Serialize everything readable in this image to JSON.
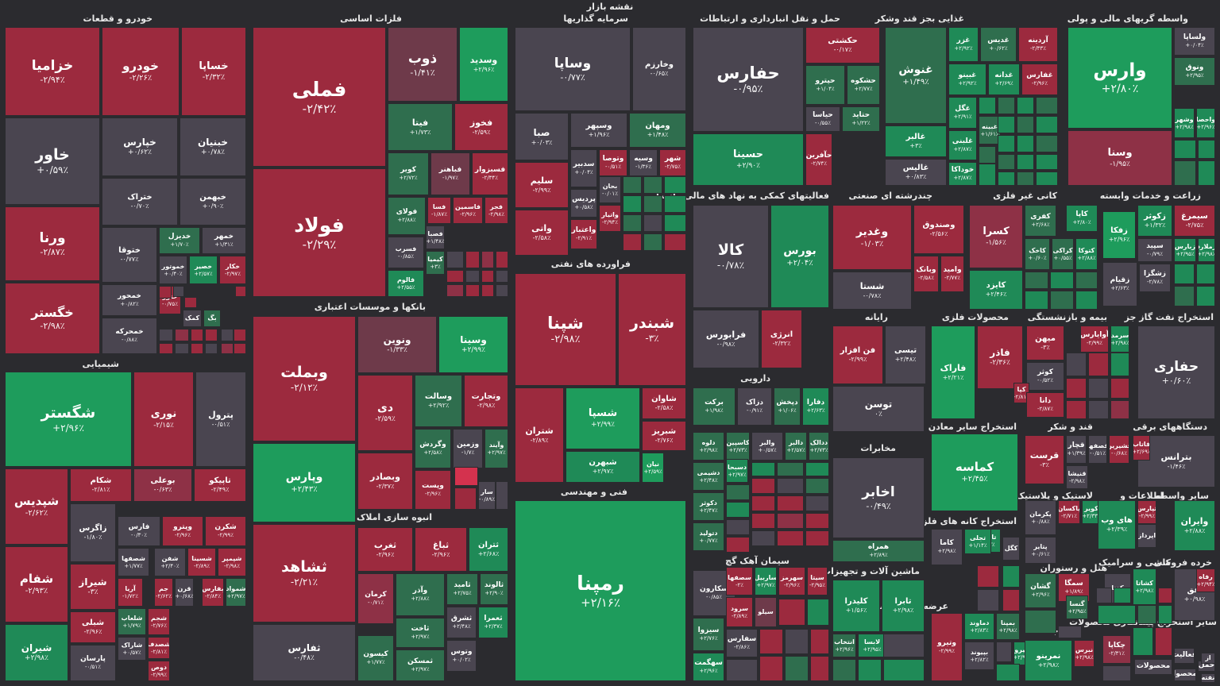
{
  "page": {
    "title": "نقشه بازار"
  },
  "colors": {
    "neg3": "#9c2a3e",
    "neg2": "#8e3146",
    "neg1": "#6e3a4a",
    "zero": "#4a4550",
    "pos1": "#2f6e4e",
    "pos2": "#1f8a57",
    "pos3": "#1e9c5c",
    "bg": "#2b2b2f"
  },
  "sections": [
    "خودرو و قطعات",
    "فلزات اساسی",
    "سرمایه گذاریها",
    "حمل و نقل انبارداری و ارتباطات",
    "غذایی بجز قند وشکر",
    "واسطه گریهای مالی و پولی",
    "شیمیایی",
    "بانکها و موسسات اعتباری",
    "فراورده های نفتی",
    "فعالیتهای کمکی به نهاد های مالی واسط",
    "چندرشته ای صنعتی",
    "کانی غیر فلزی",
    "زراعت و خدمات وابسته",
    "رایانه",
    "محصولات فلزی",
    "بیمه و بازنشستگی",
    "استخراج نفت گاز جز",
    "دارویی",
    "انبوه سازی املاک و مستغلات",
    "فنی و مهندسی",
    "مخابرات",
    "استخراج سایر معادن",
    "قند و شکر",
    "دستگاههای برقی",
    "لاستیک و پلاستیک",
    "اطلاعات و",
    "سایر واسطه",
    "استخراج کانه های فلزی",
    "سیمان آهک گچ",
    "ماشین آلات و تجهیزات",
    "هتل و رستوران",
    "کاشی و سرامیک",
    "خرده فروشی",
    "عرضه برق،گاز،بخار و آب",
    "منسوجات",
    "سایر استخراج پیمانکاری محصولات"
  ],
  "tiles": [
    {
      "n": "خزامیا",
      "p": "-۲/۹۴٪"
    },
    {
      "n": "خودرو",
      "p": "-۲/۲۶٪"
    },
    {
      "n": "خساپا",
      "p": "-۲/۳۲٪"
    },
    {
      "n": "خاور",
      "p": "+۰/۵۹٪"
    },
    {
      "n": "خپارس",
      "p": "+۰/۶۲٪"
    },
    {
      "n": "خبنیان",
      "p": "+۰/۷۸٪"
    },
    {
      "n": "ختراک",
      "p": "-۰/۷۰٪"
    },
    {
      "n": "خبهمن",
      "p": "+۰/۹۰٪"
    },
    {
      "n": "ورنا",
      "p": "-۲/۸۷٪"
    },
    {
      "n": "ختوقا",
      "p": "-۰/۷۷٪"
    },
    {
      "n": "خدیزل",
      "p": "+۱/۷۰٪"
    },
    {
      "n": "خمهر",
      "p": "+۱/۳۱٪"
    },
    {
      "n": "خمحور",
      "p": "+۰/۸۲٪"
    },
    {
      "n": "خموتور",
      "p": "+۰/۴۰٪"
    },
    {
      "n": "خصیر",
      "p": "+۲/۵۷٪"
    },
    {
      "n": "خکار",
      "p": "-۲/۹۷٪"
    },
    {
      "n": "خگستر",
      "p": "-۲/۹۸٪"
    },
    {
      "n": "خمحرکه",
      "p": "-۰/۸۸٪"
    },
    {
      "n": "ختور",
      "p": "-۰/۷۵٪"
    },
    {
      "n": "کمک",
      "p": ""
    },
    {
      "n": "بگ",
      "p": ""
    },
    {
      "n": "فملی",
      "p": "-۲/۴۲٪"
    },
    {
      "n": "ذوب",
      "p": "-۱/۴۱٪"
    },
    {
      "n": "وسدید",
      "p": "+۲/۹۶٪"
    },
    {
      "n": "فیتا",
      "p": "+۱/۷۳٪"
    },
    {
      "n": "فخوز",
      "p": "-۲/۵۹٪"
    },
    {
      "n": "فولاد",
      "p": "-۲/۲۹٪"
    },
    {
      "n": "کویر",
      "p": "+۲/۷۲٪"
    },
    {
      "n": "فباهنر",
      "p": "-۱/۹۷٪"
    },
    {
      "n": "فسبزوار",
      "p": "-۲/۳۴٪"
    },
    {
      "n": "فولای",
      "p": "+۲/۸۸٪"
    },
    {
      "n": "فسا",
      "p": "-۱/۸۷٪"
    },
    {
      "n": "فاسمین",
      "p": "-۲/۹۶٪"
    },
    {
      "n": "فجر",
      "p": "-۲/۹۸٪"
    },
    {
      "n": "فصبا",
      "p": "+۱/۴۸٪"
    },
    {
      "n": "فسرب",
      "p": "-۰/۸۵٪"
    },
    {
      "n": "کیمیا",
      "p": "+۳٪"
    },
    {
      "n": "فالوم",
      "p": "+۲/۵۵٪"
    },
    {
      "n": "وساپا",
      "p": "-۰/۷۷٪"
    },
    {
      "n": "وخارزم",
      "p": "-۰/۶۵٪"
    },
    {
      "n": "صبا",
      "p": "+۰/۰۳٪"
    },
    {
      "n": "وسپهر",
      "p": "+۱/۹۶٪"
    },
    {
      "n": "ومهان",
      "p": "+۱/۴۸٪"
    },
    {
      "n": "سلیم",
      "p": "-۲/۹۹٪"
    },
    {
      "n": "سدبیر",
      "p": "+۰/۰۴٪"
    },
    {
      "n": "وتوصا",
      "p": "-۰/۵۱٪"
    },
    {
      "n": "وسیه",
      "p": "-۱/۳۶٪"
    },
    {
      "n": "شهر",
      "p": "-۲/۷۵٪"
    },
    {
      "n": "پردیس",
      "p": "+۰/۵۸٪"
    },
    {
      "n": "بحان",
      "p": "-۰/۰۱٪"
    },
    {
      "n": "واتی",
      "p": "-۲/۵۸٪"
    },
    {
      "n": "واتیار",
      "p": "-۲/۹۴٪"
    },
    {
      "n": "واعتبار",
      "p": "-۲/۹۱٪"
    },
    {
      "n": "حفارس",
      "p": "-۰/۹۵٪"
    },
    {
      "n": "حکشتی",
      "p": "-۰/۱۷٪"
    },
    {
      "n": "حپترو",
      "p": "+۱/۰۴٪"
    },
    {
      "n": "حشکوه",
      "p": "+۲/۷۷٪"
    },
    {
      "n": "حیاسا",
      "p": "-۰/۵۵٪"
    },
    {
      "n": "حتاید",
      "p": "+۱/۲۲٪"
    },
    {
      "n": "حسینا",
      "p": "+۲/۹۰٪"
    },
    {
      "n": "حآفرین",
      "p": "-۲/۷۴٪"
    },
    {
      "n": "غنوش",
      "p": "+۱/۴۹٪"
    },
    {
      "n": "غزر",
      "p": "+۲/۹۲٪"
    },
    {
      "n": "غدیس",
      "p": "+۰/۶۲٪"
    },
    {
      "n": "آردینه",
      "p": "-۲/۳۳٪"
    },
    {
      "n": "غبینو",
      "p": "+۲/۹۲٪"
    },
    {
      "n": "غدانه",
      "p": "+۲/۶۹٪"
    },
    {
      "n": "غفارس",
      "p": "-۲/۹۶٪"
    },
    {
      "n": "غگل",
      "p": "+۲/۹۱٪"
    },
    {
      "n": "غالبر",
      "p": "+۳٪"
    },
    {
      "n": "غلبنی",
      "p": "+۲/۸۷٪"
    },
    {
      "n": "غبینه",
      "p": "+۱/۶۱٪"
    },
    {
      "n": "غالیس",
      "p": "+۰/۸۳٪"
    },
    {
      "n": "خوداکا",
      "p": "+۲/۸۷٪"
    },
    {
      "n": "وارس",
      "p": "+۲/۸۰٪"
    },
    {
      "n": "ولساپا",
      "p": "+۰/۰۴٪"
    },
    {
      "n": "ونوق",
      "p": "+۲/۹۵٪"
    },
    {
      "n": "وسنا",
      "p": "-۱/۹۵٪"
    },
    {
      "n": "وشهر",
      "p": "+۲/۹۸٪"
    },
    {
      "n": "واحصا",
      "p": "+۲/۹۶٪"
    },
    {
      "n": "شگستر",
      "p": "+۲/۹۶٪"
    },
    {
      "n": "نوری",
      "p": "-۲/۱۵٪"
    },
    {
      "n": "پترول",
      "p": "-۰/۵۱٪"
    },
    {
      "n": "شپدیس",
      "p": "-۲/۶۲٪"
    },
    {
      "n": "شکام",
      "p": "-۲/۸۱٪"
    },
    {
      "n": "بوعلی",
      "p": "-۰/۶۳٪"
    },
    {
      "n": "تاپیکو",
      "p": "-۲/۴۹٪"
    },
    {
      "n": "زاگرس",
      "p": "-۱/۸۰٪"
    },
    {
      "n": "فارس",
      "p": "-۰/۳۰٪"
    },
    {
      "n": "وپترو",
      "p": "-۲/۹۶٪"
    },
    {
      "n": "شکرن",
      "p": "-۲/۹۹٪"
    },
    {
      "n": "شصفها",
      "p": "+۱/۷۷٪"
    },
    {
      "n": "شفن",
      "p": "+۲/۴۰٪"
    },
    {
      "n": "شسینا",
      "p": "-۲/۸۹٪"
    },
    {
      "n": "شپمپر",
      "p": "-۲/۹۸٪"
    },
    {
      "n": "شفام",
      "p": "-۲/۹۳٪"
    },
    {
      "n": "شیراز",
      "p": "-۳٪"
    },
    {
      "n": "آریا",
      "p": "-۱/۷۲٪"
    },
    {
      "n": "جم",
      "p": "-۲/۶۲٪"
    },
    {
      "n": "قرن",
      "p": "+۰/۶۸٪"
    },
    {
      "n": "بفارس",
      "p": "-۲/۸۴٪"
    },
    {
      "n": "شمواد",
      "p": "+۲/۹۷٪"
    },
    {
      "n": "شبلی",
      "p": "-۲/۹۶٪"
    },
    {
      "n": "شلعاب",
      "p": "+۱/۷۹٪"
    },
    {
      "n": "شجم",
      "p": "-۲/۷۶٪"
    },
    {
      "n": "شیران",
      "p": "+۲/۹۸٪"
    },
    {
      "n": "شاراک",
      "p": "+۰/۵۷٪"
    },
    {
      "n": "شصدف",
      "p": "-۲/۸۱٪"
    },
    {
      "n": "پارسان",
      "p": "-۰/۵۱٪"
    },
    {
      "n": "دوص",
      "p": "-۲/۹۹٪"
    },
    {
      "n": "وبملت",
      "p": "-۲/۱۲٪"
    },
    {
      "n": "ونوین",
      "p": "-۱/۳۳٪"
    },
    {
      "n": "وسینا",
      "p": "+۲/۹۹٪"
    },
    {
      "n": "دی",
      "p": "-۲/۵۹٪"
    },
    {
      "n": "وسالت",
      "p": "+۲/۹۲٪"
    },
    {
      "n": "وتجارت",
      "p": "-۲/۹۸٪"
    },
    {
      "n": "وپارس",
      "p": "+۲/۴۳٪"
    },
    {
      "n": "وگردش",
      "p": "+۲/۵۸٪"
    },
    {
      "n": "وزمین",
      "p": "-۱/۷٪"
    },
    {
      "n": "وآیند",
      "p": "+۲/۹۷٪"
    },
    {
      "n": "وبصادر",
      "p": "-۲/۳۷٪"
    },
    {
      "n": "وپست",
      "p": "-۲/۹۶٪"
    },
    {
      "n": "سار",
      "p": "-۰/۸۹٪"
    },
    {
      "n": "شپنا",
      "p": "-۲/۹۸٪"
    },
    {
      "n": "شبندر",
      "p": "-۳٪"
    },
    {
      "n": "شتران",
      "p": "-۲/۸۹٪"
    },
    {
      "n": "شسپا",
      "p": "+۲/۹۹٪"
    },
    {
      "n": "شاوان",
      "p": "-۲/۵۸٪"
    },
    {
      "n": "شبریز",
      "p": "-۲/۷۶٪"
    },
    {
      "n": "شبهرن",
      "p": "+۲/۹۷٪"
    },
    {
      "n": "نیان",
      "p": "+۲/۵۹٪"
    },
    {
      "n": "کالا",
      "p": "-۰/۷۸٪"
    },
    {
      "n": "بورس",
      "p": "+۲/۰۴٪"
    },
    {
      "n": "فرابورس",
      "p": "-۰/۹۸٪"
    },
    {
      "n": "انرژی",
      "p": "-۲/۳۲٪"
    },
    {
      "n": "وغدیر",
      "p": "-۱/۰۳٪"
    },
    {
      "n": "وصندوق",
      "p": "-۲/۵۶٪"
    },
    {
      "n": "وبانک",
      "p": "-۲/۵۸٪"
    },
    {
      "n": "وامید",
      "p": "-۲/۷۷٪"
    },
    {
      "n": "شستا",
      "p": "-۰/۷۸٪"
    },
    {
      "n": "کسرا",
      "p": "-۱/۵۶٪"
    },
    {
      "n": "کفری",
      "p": "+۲/۶۸٪"
    },
    {
      "n": "کاپا",
      "p": "+۲/۸۰٪"
    },
    {
      "n": "کاخک",
      "p": "+۰/۶۰٪"
    },
    {
      "n": "کراکی",
      "p": "+۰/۵۵٪"
    },
    {
      "n": "کتوکا",
      "p": "+۲/۸۸٪"
    },
    {
      "n": "کایزد",
      "p": "+۲/۴۶٪"
    },
    {
      "n": "زکوثر",
      "p": "+۱/۳۲٪"
    },
    {
      "n": "سیمرغ",
      "p": "-۲/۷۵٪"
    },
    {
      "n": "زفکا",
      "p": "+۲/۹۶٪"
    },
    {
      "n": "سپید",
      "p": "-۰/۷۹٪"
    },
    {
      "n": "زبارس",
      "p": "+۲/۹۵٪"
    },
    {
      "n": "زملارد",
      "p": "+۲/۹۸٪"
    },
    {
      "n": "زقیام",
      "p": "+۲/۶۳٪"
    },
    {
      "n": "زشگزا",
      "p": "-۲/۷۸٪"
    },
    {
      "n": "فن افزار",
      "p": "-۲/۹۹٪"
    },
    {
      "n": "تیسی",
      "p": "+۲/۴۸٪"
    },
    {
      "n": "فاراک",
      "p": "+۲/۲۱٪"
    },
    {
      "n": "فاذر",
      "p": "-۲/۳۶٪"
    },
    {
      "n": "میهن",
      "p": "-۳٪"
    },
    {
      "n": "آوایارس",
      "p": "-۲/۹۹٪"
    },
    {
      "n": "سرمد",
      "p": "+۲/۹۸٪"
    },
    {
      "n": "کوثر",
      "p": "-۰/۵۲٪"
    },
    {
      "n": "کپا",
      "p": "-۲/۸۱٪"
    },
    {
      "n": "دانا",
      "p": "-۲/۸۷٪"
    },
    {
      "n": "حفاری",
      "p": "+۰/۶۰٪"
    },
    {
      "n": "برکت",
      "p": "+۱/۹۸٪"
    },
    {
      "n": "دزاک",
      "p": "-۰/۹۱٪"
    },
    {
      "n": "دپخش",
      "p": "+۱/۰۶٪"
    },
    {
      "n": "دفارا",
      "p": "+۲/۶۳٪"
    },
    {
      "n": "توسن",
      "p": "۰٪"
    },
    {
      "n": "دلوه",
      "p": "+۲/۹۸٪"
    },
    {
      "n": "کاسپین",
      "p": "+۲/۷۳٪"
    },
    {
      "n": "والبر",
      "p": "+۰/۵۷٪"
    },
    {
      "n": "دالبر",
      "p": "+۲/۵۷٪"
    },
    {
      "n": "ددالک",
      "p": "+۲/۷۳٪"
    },
    {
      "n": "دشیمی",
      "p": "+۲/۴۸٪"
    },
    {
      "n": "دسبحا",
      "p": "+۲/۹۷٪"
    },
    {
      "n": "دکوثر",
      "p": "+۲/۴۷٪"
    },
    {
      "n": "دتولید",
      "p": "+۰/۷۷٪"
    },
    {
      "n": "ثشاهد",
      "p": "-۲/۲۱٪"
    },
    {
      "n": "ثغرب",
      "p": "-۲/۹۶٪"
    },
    {
      "n": "ثباغ",
      "p": "-۲/۹۶٪"
    },
    {
      "n": "ثتران",
      "p": "+۲/۶۸٪"
    },
    {
      "n": "کرمان",
      "p": "-۰/۷۱٪"
    },
    {
      "n": "وآذر",
      "p": "+۲/۸۸٪"
    },
    {
      "n": "ثامید",
      "p": "+۲/۷۵٪"
    },
    {
      "n": "ثالوند",
      "p": "+۲/۹۰٪"
    },
    {
      "n": "ثاخت",
      "p": "+۲/۹۷٪"
    },
    {
      "n": "ثشرق",
      "p": "+۲/۴۸٪"
    },
    {
      "n": "ثعمرا",
      "p": "+۲/۳۷٪"
    },
    {
      "n": "ثفارس",
      "p": "-۰/۴۸٪"
    },
    {
      "n": "کیسون",
      "p": "+۱/۷۷٪"
    },
    {
      "n": "ثمسکن",
      "p": "+۲/۹۷٪"
    },
    {
      "n": "وتوس",
      "p": "+۰/۰۲٪"
    },
    {
      "n": "رمپنا",
      "p": "+۲/۱۶٪"
    },
    {
      "n": "اخابر",
      "p": "-۰/۴۹٪"
    },
    {
      "n": "همراه",
      "p": "+۲/۸۹٪"
    },
    {
      "n": "کماسه",
      "p": "+۲/۴۵٪"
    },
    {
      "n": "قاسم",
      "p": ""
    },
    {
      "n": "قچار",
      "p": "+۱/۳۹٪"
    },
    {
      "n": "قصفها",
      "p": "-۰/۵۱٪"
    },
    {
      "n": "قشیرین",
      "p": "-۰/۶۸٪"
    },
    {
      "n": "قرست",
      "p": "-۳٪"
    },
    {
      "n": "قنیشا",
      "p": "-۲/۹۸٪"
    },
    {
      "n": "بترانس",
      "p": "-۱/۴۶٪"
    },
    {
      "n": "فاتاب",
      "p": "+۲/۶۹٪"
    },
    {
      "n": "پکرمان",
      "p": "+۰/۸۸٪"
    },
    {
      "n": "پاکسان",
      "p": "-۲/۷۱٪"
    },
    {
      "n": "کویر",
      "p": "+۲/۳۳٪"
    },
    {
      "n": "پتایر",
      "p": "+۰/۶۱٪"
    },
    {
      "n": "های وب",
      "p": "+۲/۳۹٪"
    },
    {
      "n": "ثپارس",
      "p": "-۲/۹۹٪"
    },
    {
      "n": "اپرداز",
      "p": ""
    },
    {
      "n": "وایران",
      "p": "+۲/۸۸٪"
    },
    {
      "n": "کاما",
      "p": "+۲/۹۸٪"
    },
    {
      "n": "تاصیکو",
      "p": "+۲/۹۲٪"
    },
    {
      "n": "تجلی",
      "p": "+۱/۱۴٪"
    },
    {
      "n": "کگل",
      "p": ""
    },
    {
      "n": "سکارون",
      "p": "-۰/۸۵٪"
    },
    {
      "n": "سصفها",
      "p": "-۲٪"
    },
    {
      "n": "ساربیل",
      "p": "+۲/۹۷٪"
    },
    {
      "n": "سهرمز",
      "p": "-۲/۹۶٪"
    },
    {
      "n": "سیتا",
      "p": "-۲/۹۵٪"
    },
    {
      "n": "سرود",
      "p": "-۲/۸۹٪"
    },
    {
      "n": "سیلو",
      "p": ""
    },
    {
      "n": "سیزوا",
      "p": "+۲/۷۶٪"
    },
    {
      "n": "سفارس",
      "p": "-۲/۸۶٪"
    },
    {
      "n": "سهگمت",
      "p": "+۲/۹۶٪"
    },
    {
      "n": "کلیدرا",
      "p": "+۱/۵۶٪"
    },
    {
      "n": "تابرا",
      "p": "+۲/۹۸٪"
    },
    {
      "n": "لابسا",
      "p": "+۲/۹۵٪"
    },
    {
      "n": "انتخاب",
      "p": "+۲/۹۶٪"
    },
    {
      "n": "گشان",
      "p": "+۲/۹۶٪"
    },
    {
      "n": "سمگا",
      "p": "+۱/۸۹٪"
    },
    {
      "n": "گنسا",
      "p": "+۲/۹۵٪"
    },
    {
      "n": "کشاتا",
      "p": "+۲/۹۸٪"
    },
    {
      "n": "کدنا",
      "p": ""
    },
    {
      "n": "افق",
      "p": "+۰/۹۸٪"
    },
    {
      "n": "رفاه",
      "p": "+۲/۹۴٪"
    },
    {
      "n": "وتیرو",
      "p": "-۲/۹۹٪"
    },
    {
      "n": "دماوند",
      "p": "+۲/۸۳٪"
    },
    {
      "n": "بمپنا",
      "p": "+۲/۹۸٪"
    },
    {
      "n": "بپیوند",
      "p": "+۲/۸۲٪"
    },
    {
      "n": "بنیرو",
      "p": "+۲/۹۸٪"
    },
    {
      "n": "نمرینو",
      "p": "+۲/۹۸٪"
    },
    {
      "n": "نبرس",
      "p": "+۲/۹۸٪"
    },
    {
      "n": "چکاپا",
      "p": "-۲/۳۱٪"
    },
    {
      "n": "محصولات",
      "p": ""
    },
    {
      "n": "فعالیت",
      "p": ""
    },
    {
      "n": "حمل",
      "p": ""
    },
    {
      "n": "محصوا",
      "p": ""
    },
    {
      "n": "از",
      "p": ""
    },
    {
      "n": "نفته",
      "p": ""
    }
  ]
}
